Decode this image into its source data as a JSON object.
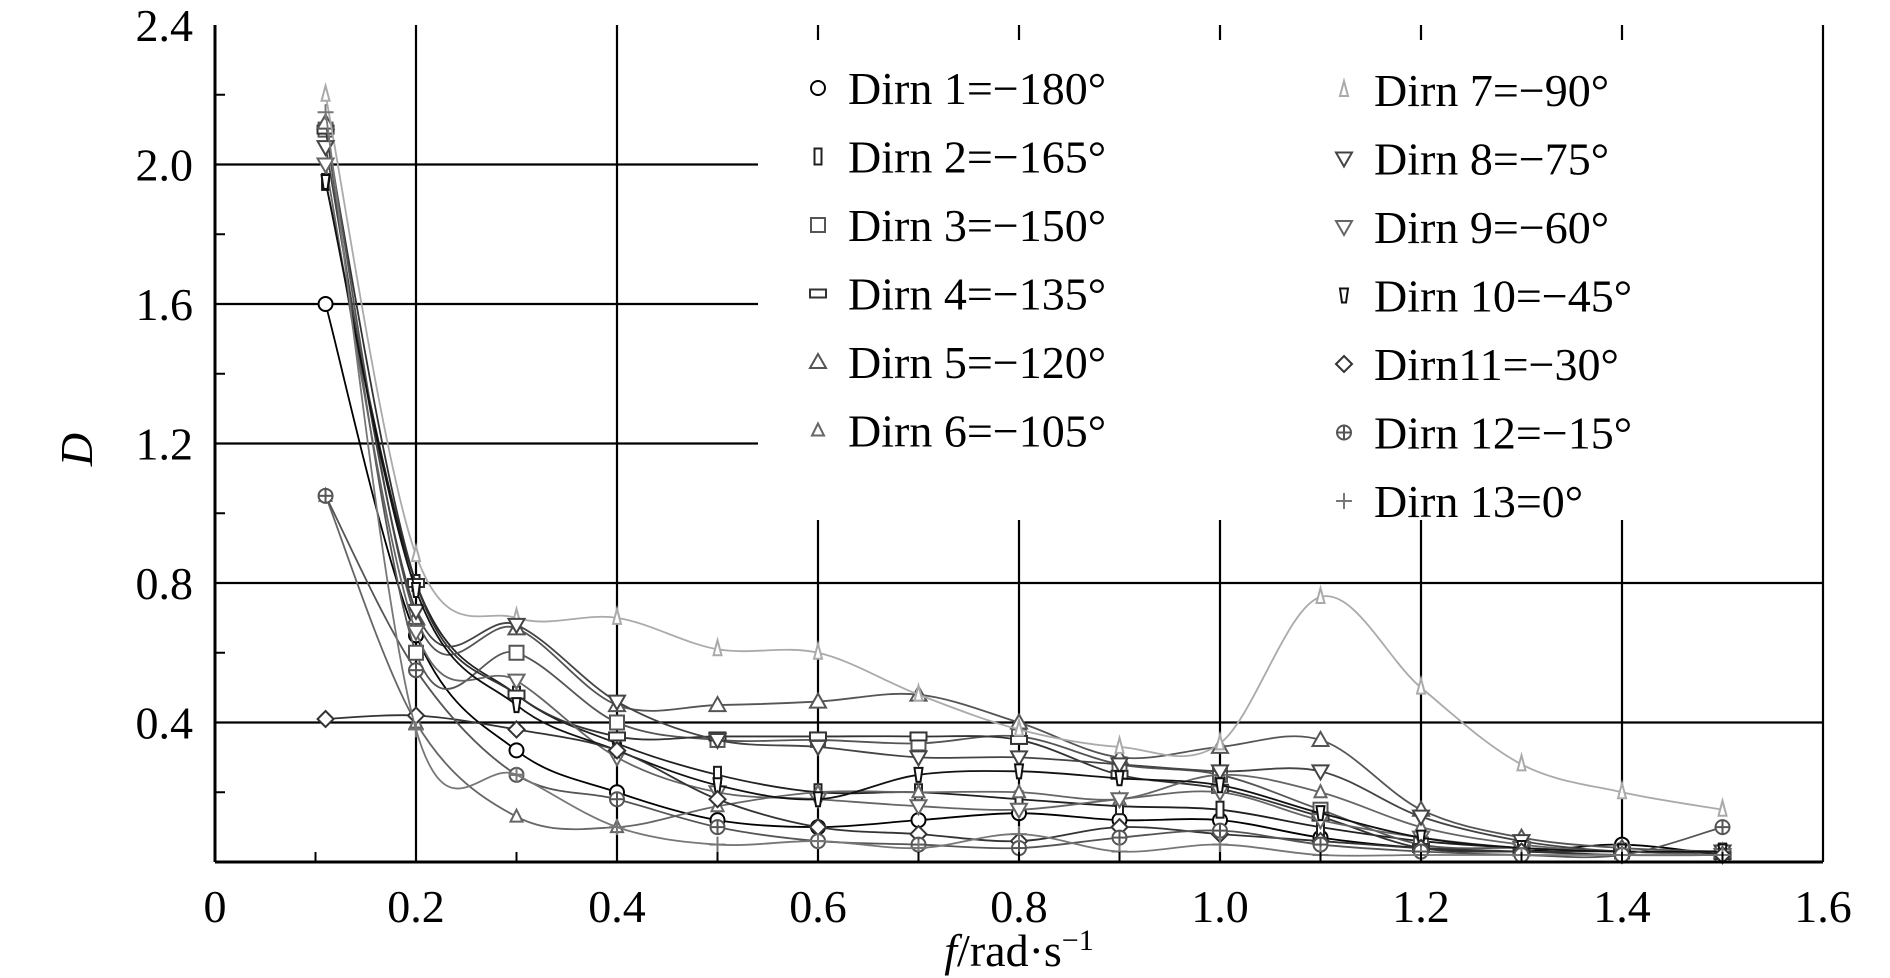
{
  "chart_data": {
    "type": "line",
    "title": "",
    "xlabel": {
      "var": "f",
      "unit": "/rad·s",
      "exp": "−1"
    },
    "ylabel": "D",
    "xlim": [
      0,
      1.6
    ],
    "ylim": [
      0,
      2.4
    ],
    "x_ticks": [
      0,
      0.2,
      0.4,
      0.6,
      0.8,
      1.0,
      1.2,
      1.4,
      1.6
    ],
    "x_tick_labels": [
      "0",
      "0.2",
      "0.4",
      "0.6",
      "0.8",
      "1.0",
      "1.2",
      "1.4",
      "1.6"
    ],
    "y_ticks": [
      0.4,
      0.8,
      1.2,
      1.6,
      2.0,
      2.4
    ],
    "y_tick_labels": [
      "0.4",
      "0.8",
      "1.2",
      "1.6",
      "2.0",
      "2.4"
    ],
    "grid": true,
    "legend_position": "top-right (inside plot, two columns)",
    "series": [
      {
        "name": "Dirn 1=−180°",
        "marker": "circle",
        "color": "#000000",
        "x": [
          0.11,
          0.2,
          0.3,
          0.4,
          0.5,
          0.6,
          0.7,
          0.8,
          0.9,
          1.0,
          1.1,
          1.2,
          1.3,
          1.4,
          1.5
        ],
        "y": [
          1.6,
          0.65,
          0.32,
          0.2,
          0.12,
          0.1,
          0.12,
          0.14,
          0.12,
          0.12,
          0.07,
          0.04,
          0.03,
          0.05,
          0.02
        ]
      },
      {
        "name": "Dirn 2=−165°",
        "marker": "bar",
        "color": "#202020",
        "x": [
          0.11,
          0.2,
          0.3,
          0.4,
          0.5,
          0.6,
          0.7,
          0.8,
          0.9,
          1.0,
          1.1,
          1.2,
          1.3,
          1.4,
          1.5
        ],
        "y": [
          1.95,
          0.8,
          0.48,
          0.34,
          0.25,
          0.2,
          0.2,
          0.18,
          0.16,
          0.15,
          0.1,
          0.06,
          0.04,
          0.03,
          0.03
        ]
      },
      {
        "name": "Dirn 3=−150°",
        "marker": "square",
        "color": "#555555",
        "x": [
          0.11,
          0.2,
          0.3,
          0.4,
          0.5,
          0.6,
          0.7,
          0.8,
          0.9,
          1.0,
          1.1,
          1.2,
          1.3,
          1.4,
          1.5
        ],
        "y": [
          2.1,
          0.6,
          0.6,
          0.4,
          0.35,
          0.35,
          0.34,
          0.36,
          0.28,
          0.25,
          0.15,
          0.05,
          0.04,
          0.03,
          0.02
        ]
      },
      {
        "name": "Dirn 4=−135°",
        "marker": "square-dash",
        "color": "#333333",
        "x": [
          0.11,
          0.2,
          0.3,
          0.4,
          0.5,
          0.6,
          0.7,
          0.8,
          0.9,
          1.0,
          1.1,
          1.2,
          1.3,
          1.4,
          1.5
        ],
        "y": [
          2.1,
          0.8,
          0.48,
          0.36,
          0.36,
          0.36,
          0.36,
          0.35,
          0.25,
          0.21,
          0.13,
          0.04,
          0.03,
          0.03,
          0.02
        ]
      },
      {
        "name": "Dirn 5=−120°",
        "marker": "triangle",
        "color": "#555555",
        "x": [
          0.11,
          0.2,
          0.3,
          0.4,
          0.5,
          0.6,
          0.7,
          0.8,
          0.9,
          1.0,
          1.1,
          1.2,
          1.3,
          1.4,
          1.5
        ],
        "y": [
          2.12,
          0.7,
          0.67,
          0.45,
          0.45,
          0.46,
          0.48,
          0.4,
          0.3,
          0.33,
          0.35,
          0.15,
          0.07,
          0.04,
          0.03
        ]
      },
      {
        "name": "Dirn 6=−105°",
        "marker": "triangle-small",
        "color": "#666666",
        "x": [
          0.11,
          0.2,
          0.3,
          0.4,
          0.5,
          0.6,
          0.7,
          0.8,
          0.9,
          1.0,
          1.1,
          1.2,
          1.3,
          1.4,
          1.5
        ],
        "y": [
          1.05,
          0.4,
          0.13,
          0.1,
          0.16,
          0.2,
          0.2,
          0.2,
          0.18,
          0.25,
          0.2,
          0.1,
          0.05,
          0.03,
          0.03
        ]
      },
      {
        "name": "Dirn 7=−90°",
        "marker": "triangle-light",
        "color": "#aaaaaa",
        "x": [
          0.11,
          0.2,
          0.3,
          0.4,
          0.5,
          0.6,
          0.7,
          0.8,
          0.9,
          1.0,
          1.1,
          1.2,
          1.3,
          1.4,
          1.5
        ],
        "y": [
          2.2,
          0.88,
          0.7,
          0.7,
          0.61,
          0.6,
          0.48,
          0.38,
          0.33,
          0.34,
          0.76,
          0.5,
          0.28,
          0.2,
          0.15
        ]
      },
      {
        "name": "Dirn 8=−75°",
        "marker": "triangle-down",
        "color": "#444444",
        "x": [
          0.11,
          0.2,
          0.3,
          0.4,
          0.5,
          0.6,
          0.7,
          0.8,
          0.9,
          1.0,
          1.1,
          1.2,
          1.3,
          1.4,
          1.5
        ],
        "y": [
          2.05,
          0.72,
          0.68,
          0.46,
          0.35,
          0.33,
          0.3,
          0.3,
          0.28,
          0.26,
          0.26,
          0.13,
          0.06,
          0.03,
          0.03
        ]
      },
      {
        "name": "Dirn 9=−60°",
        "marker": "triangle-down",
        "color": "#666666",
        "x": [
          0.11,
          0.2,
          0.3,
          0.4,
          0.5,
          0.6,
          0.7,
          0.8,
          0.9,
          1.0,
          1.1,
          1.2,
          1.3,
          1.4,
          1.5
        ],
        "y": [
          2.0,
          0.66,
          0.52,
          0.3,
          0.2,
          0.18,
          0.16,
          0.15,
          0.18,
          0.2,
          0.12,
          0.07,
          0.04,
          0.03,
          0.02
        ]
      },
      {
        "name": "Dirn 10=−45°",
        "marker": "tick-down",
        "color": "#111111",
        "x": [
          0.11,
          0.2,
          0.3,
          0.4,
          0.5,
          0.6,
          0.7,
          0.8,
          0.9,
          1.0,
          1.1,
          1.2,
          1.3,
          1.4,
          1.5
        ],
        "y": [
          1.95,
          0.78,
          0.45,
          0.32,
          0.22,
          0.18,
          0.25,
          0.26,
          0.24,
          0.22,
          0.14,
          0.07,
          0.04,
          0.03,
          0.03
        ]
      },
      {
        "name": "Dirn11=−30°",
        "marker": "diamond",
        "color": "#333333",
        "x": [
          0.11,
          0.2,
          0.3,
          0.4,
          0.5,
          0.6,
          0.7,
          0.8,
          0.9,
          1.0,
          1.1,
          1.2,
          1.3,
          1.4,
          1.5
        ],
        "y": [
          0.41,
          0.42,
          0.38,
          0.32,
          0.18,
          0.1,
          0.08,
          0.06,
          0.1,
          0.08,
          0.06,
          0.04,
          0.03,
          0.02,
          0.02
        ]
      },
      {
        "name": "Dirn 12=−15°",
        "marker": "star",
        "color": "#555555",
        "x": [
          0.11,
          0.2,
          0.3,
          0.4,
          0.5,
          0.6,
          0.7,
          0.8,
          0.9,
          1.0,
          1.1,
          1.2,
          1.3,
          1.4,
          1.5
        ],
        "y": [
          1.05,
          0.55,
          0.25,
          0.18,
          0.1,
          0.06,
          0.05,
          0.04,
          0.07,
          0.09,
          0.05,
          0.03,
          0.02,
          0.02,
          0.1
        ]
      },
      {
        "name": "Dirn 13=0°",
        "marker": "plus",
        "color": "#777777",
        "x": [
          0.11,
          0.2,
          0.3,
          0.4,
          0.5,
          0.6,
          0.7,
          0.8,
          0.9,
          1.0,
          1.1,
          1.2,
          1.3,
          1.4,
          1.5
        ],
        "y": [
          2.15,
          0.38,
          0.25,
          0.1,
          0.05,
          0.06,
          0.04,
          0.08,
          0.03,
          0.05,
          0.02,
          0.02,
          0.02,
          0.02,
          0.02
        ]
      }
    ]
  }
}
